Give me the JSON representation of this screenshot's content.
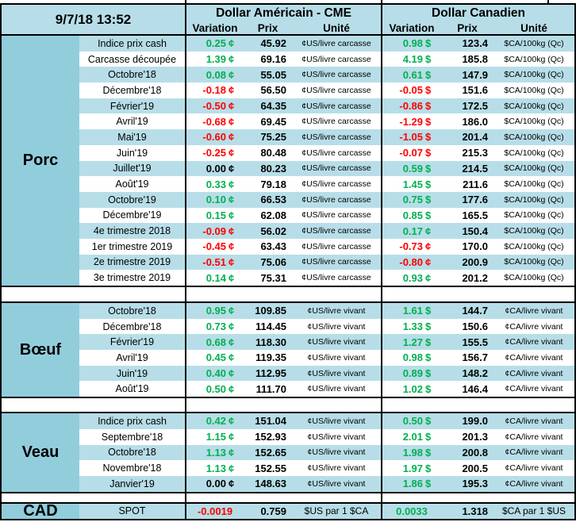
{
  "meta": {
    "datetime": "9/7/18 13:52"
  },
  "header": {
    "group_us": "Dollar Américain - CME",
    "group_ca": "Dollar Canadien",
    "col_variation": "Variation",
    "col_prix": "Prix",
    "col_unite": "Unité"
  },
  "colors": {
    "row_light_blue": "#B7DEE8",
    "section_blue": "#92CDDC",
    "positive_green": "#00B050",
    "negative_red": "#FF0000",
    "border_black": "#000000"
  },
  "sections": [
    {
      "label": "Porc",
      "sep_after": 22,
      "rows": [
        {
          "label": "Indice prix cash",
          "us_var": "0.25",
          "us_sym": "¢",
          "us_dir": "up",
          "us_prix": "45.92",
          "us_unit": "¢US/livre carcasse",
          "ca_var": "0.98",
          "ca_sym": "$",
          "ca_dir": "up",
          "ca_prix": "123.4",
          "ca_unit": "$CA/100kg (Qc)"
        },
        {
          "label": "Carcasse découpée",
          "us_var": "1.39",
          "us_sym": "¢",
          "us_dir": "up",
          "us_prix": "69.16",
          "us_unit": "¢US/livre carcasse",
          "ca_var": "4.19",
          "ca_sym": "$",
          "ca_dir": "up",
          "ca_prix": "185.8",
          "ca_unit": "$CA/100kg (Qc)"
        },
        {
          "label": "Octobre'18",
          "us_var": "0.08",
          "us_sym": "¢",
          "us_dir": "up",
          "us_prix": "55.05",
          "us_unit": "¢US/livre carcasse",
          "ca_var": "0.61",
          "ca_sym": "$",
          "ca_dir": "up",
          "ca_prix": "147.9",
          "ca_unit": "$CA/100kg (Qc)"
        },
        {
          "label": "Décembre'18",
          "us_var": "-0.18",
          "us_sym": "¢",
          "us_dir": "down",
          "us_prix": "56.50",
          "us_unit": "¢US/livre carcasse",
          "ca_var": "-0.05",
          "ca_sym": "$",
          "ca_dir": "down",
          "ca_prix": "151.6",
          "ca_unit": "$CA/100kg (Qc)"
        },
        {
          "label": "Février'19",
          "us_var": "-0.50",
          "us_sym": "¢",
          "us_dir": "down",
          "us_prix": "64.35",
          "us_unit": "¢US/livre carcasse",
          "ca_var": "-0.86",
          "ca_sym": "$",
          "ca_dir": "down",
          "ca_prix": "172.5",
          "ca_unit": "$CA/100kg (Qc)"
        },
        {
          "label": "Avril'19",
          "us_var": "-0.68",
          "us_sym": "¢",
          "us_dir": "down",
          "us_prix": "69.45",
          "us_unit": "¢US/livre carcasse",
          "ca_var": "-1.29",
          "ca_sym": "$",
          "ca_dir": "down",
          "ca_prix": "186.0",
          "ca_unit": "$CA/100kg (Qc)"
        },
        {
          "label": "Mai'19",
          "us_var": "-0.60",
          "us_sym": "¢",
          "us_dir": "down",
          "us_prix": "75.25",
          "us_unit": "¢US/livre carcasse",
          "ca_var": "-1.05",
          "ca_sym": "$",
          "ca_dir": "down",
          "ca_prix": "201.4",
          "ca_unit": "$CA/100kg (Qc)"
        },
        {
          "label": "Juin'19",
          "us_var": "-0.25",
          "us_sym": "¢",
          "us_dir": "down",
          "us_prix": "80.48",
          "us_unit": "¢US/livre carcasse",
          "ca_var": "-0.07",
          "ca_sym": "$",
          "ca_dir": "down",
          "ca_prix": "215.3",
          "ca_unit": "$CA/100kg (Qc)"
        },
        {
          "label": "Juillet'19",
          "us_var": "0.00",
          "us_sym": "¢",
          "us_dir": "flat",
          "us_prix": "80.23",
          "us_unit": "¢US/livre carcasse",
          "ca_var": "0.59",
          "ca_sym": "$",
          "ca_dir": "up",
          "ca_prix": "214.5",
          "ca_unit": "$CA/100kg (Qc)"
        },
        {
          "label": "Août'19",
          "us_var": "0.33",
          "us_sym": "¢",
          "us_dir": "up",
          "us_prix": "79.18",
          "us_unit": "¢US/livre carcasse",
          "ca_var": "1.45",
          "ca_sym": "$",
          "ca_dir": "up",
          "ca_prix": "211.6",
          "ca_unit": "$CA/100kg (Qc)"
        },
        {
          "label": "Octobre'19",
          "us_var": "0.10",
          "us_sym": "¢",
          "us_dir": "up",
          "us_prix": "66.53",
          "us_unit": "¢US/livre carcasse",
          "ca_var": "0.75",
          "ca_sym": "$",
          "ca_dir": "up",
          "ca_prix": "177.6",
          "ca_unit": "$CA/100kg (Qc)"
        },
        {
          "label": "Décembre'19",
          "us_var": "0.15",
          "us_sym": "¢",
          "us_dir": "up",
          "us_prix": "62.08",
          "us_unit": "¢US/livre carcasse",
          "ca_var": "0.85",
          "ca_sym": "$",
          "ca_dir": "up",
          "ca_prix": "165.5",
          "ca_unit": "$CA/100kg (Qc)"
        },
        {
          "label": "4e trimestre 2018",
          "us_var": "-0.09",
          "us_sym": "¢",
          "us_dir": "down",
          "us_prix": "56.02",
          "us_unit": "¢US/livre carcasse",
          "ca_var": "0.17",
          "ca_sym": "¢",
          "ca_dir": "up",
          "ca_prix": "150.4",
          "ca_unit": "$CA/100kg (Qc)"
        },
        {
          "label": "1er trimestre 2019",
          "us_var": "-0.45",
          "us_sym": "¢",
          "us_dir": "down",
          "us_prix": "63.43",
          "us_unit": "¢US/livre carcasse",
          "ca_var": "-0.73",
          "ca_sym": "¢",
          "ca_dir": "down",
          "ca_prix": "170.0",
          "ca_unit": "$CA/100kg (Qc)"
        },
        {
          "label": "2e trimestre 2019",
          "us_var": "-0.51",
          "us_sym": "¢",
          "us_dir": "down",
          "us_prix": "75.06",
          "us_unit": "¢US/livre carcasse",
          "ca_var": "-0.80",
          "ca_sym": "¢",
          "ca_dir": "down",
          "ca_prix": "200.9",
          "ca_unit": "$CA/100kg (Qc)"
        },
        {
          "label": "3e trimestre 2019",
          "us_var": "0.14",
          "us_sym": "¢",
          "us_dir": "up",
          "us_prix": "75.31",
          "us_unit": "¢US/livre carcasse",
          "ca_var": "0.93",
          "ca_sym": "¢",
          "ca_dir": "up",
          "ca_prix": "201.2",
          "ca_unit": "$CA/100kg (Qc)"
        }
      ]
    },
    {
      "label": "Bœuf",
      "sep_after": 21,
      "rows": [
        {
          "label": "Octobre'18",
          "us_var": "0.95",
          "us_sym": "¢",
          "us_dir": "up",
          "us_prix": "109.85",
          "us_unit": "¢US/livre vivant",
          "ca_var": "1.61",
          "ca_sym": "$",
          "ca_dir": "up",
          "ca_prix": "144.7",
          "ca_unit": "¢CA/livre vivant"
        },
        {
          "label": "Décembre'18",
          "us_var": "0.73",
          "us_sym": "¢",
          "us_dir": "up",
          "us_prix": "114.45",
          "us_unit": "¢US/livre vivant",
          "ca_var": "1.33",
          "ca_sym": "$",
          "ca_dir": "up",
          "ca_prix": "150.6",
          "ca_unit": "¢CA/livre vivant"
        },
        {
          "label": "Février'19",
          "us_var": "0.68",
          "us_sym": "¢",
          "us_dir": "up",
          "us_prix": "118.30",
          "us_unit": "¢US/livre vivant",
          "ca_var": "1.27",
          "ca_sym": "$",
          "ca_dir": "up",
          "ca_prix": "155.5",
          "ca_unit": "¢CA/livre vivant"
        },
        {
          "label": "Avril'19",
          "us_var": "0.45",
          "us_sym": "¢",
          "us_dir": "up",
          "us_prix": "119.35",
          "us_unit": "¢US/livre vivant",
          "ca_var": "0.98",
          "ca_sym": "$",
          "ca_dir": "up",
          "ca_prix": "156.7",
          "ca_unit": "¢CA/livre vivant"
        },
        {
          "label": "Juin'19",
          "us_var": "0.40",
          "us_sym": "¢",
          "us_dir": "up",
          "us_prix": "112.95",
          "us_unit": "¢US/livre vivant",
          "ca_var": "0.89",
          "ca_sym": "$",
          "ca_dir": "up",
          "ca_prix": "148.2",
          "ca_unit": "¢CA/livre vivant"
        },
        {
          "label": "Août'19",
          "us_var": "0.50",
          "us_sym": "¢",
          "us_dir": "up",
          "us_prix": "111.70",
          "us_unit": "¢US/livre vivant",
          "ca_var": "1.02",
          "ca_sym": "$",
          "ca_dir": "up",
          "ca_prix": "146.4",
          "ca_unit": "¢CA/livre vivant"
        }
      ]
    },
    {
      "label": "Veau",
      "sep_after": 15,
      "rows": [
        {
          "label": "Indice prix cash",
          "us_var": "0.42",
          "us_sym": "¢",
          "us_dir": "up",
          "us_prix": "151.04",
          "us_unit": "¢US/livre vivant",
          "ca_var": "0.50",
          "ca_sym": "$",
          "ca_dir": "up",
          "ca_prix": "199.0",
          "ca_unit": "¢CA/livre vivant"
        },
        {
          "label": "Septembre'18",
          "us_var": "1.15",
          "us_sym": "¢",
          "us_dir": "up",
          "us_prix": "152.93",
          "us_unit": "¢US/livre vivant",
          "ca_var": "2.01",
          "ca_sym": "$",
          "ca_dir": "up",
          "ca_prix": "201.3",
          "ca_unit": "¢CA/livre vivant"
        },
        {
          "label": "Octobre'18",
          "us_var": "1.13",
          "us_sym": "¢",
          "us_dir": "up",
          "us_prix": "152.65",
          "us_unit": "¢US/livre vivant",
          "ca_var": "1.98",
          "ca_sym": "$",
          "ca_dir": "up",
          "ca_prix": "200.8",
          "ca_unit": "¢CA/livre vivant"
        },
        {
          "label": "Novembre'18",
          "us_var": "1.13",
          "us_sym": "¢",
          "us_dir": "up",
          "us_prix": "152.55",
          "us_unit": "¢US/livre vivant",
          "ca_var": "1.97",
          "ca_sym": "$",
          "ca_dir": "up",
          "ca_prix": "200.5",
          "ca_unit": "¢CA/livre vivant"
        },
        {
          "label": "Janvier'19",
          "us_var": "0.00",
          "us_sym": "¢",
          "us_dir": "flat",
          "us_prix": "148.63",
          "us_unit": "¢US/livre vivant",
          "ca_var": "1.86",
          "ca_sym": "$",
          "ca_dir": "up",
          "ca_prix": "195.3",
          "ca_unit": "¢CA/livre vivant"
        }
      ]
    },
    {
      "label": "CAD",
      "sep_after": 0,
      "flat_rows": true,
      "rows": [
        {
          "label": "SPOT",
          "us_var": "-0.0019",
          "us_sym": "",
          "us_dir": "down",
          "us_prix": "0.759",
          "us_unit": "$US par 1 $CA",
          "ca_var": "0.0033",
          "ca_sym": "",
          "ca_dir": "up",
          "ca_prix": "1.318",
          "ca_unit": "$CA par 1 $US",
          "big_unit": true
        }
      ]
    }
  ]
}
